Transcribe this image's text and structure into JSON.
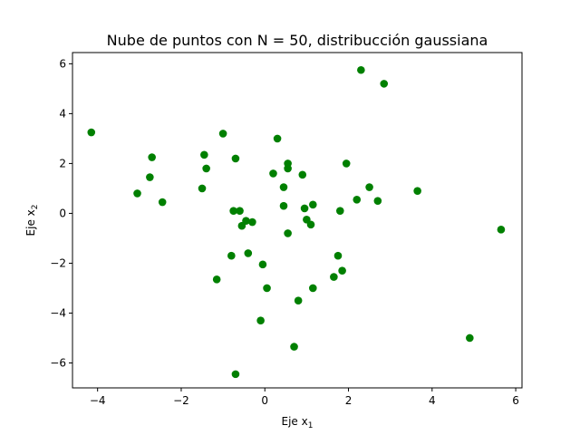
{
  "chart_data": {
    "type": "scatter",
    "title": "Nube de puntos con N = 50, distribucción gaussiana",
    "xlabel": {
      "text": "Eje x",
      "sub": "1"
    },
    "ylabel": {
      "text": "Eje x",
      "sub": "2"
    },
    "xlim": [
      -4.6,
      6.15
    ],
    "ylim": [
      -7.0,
      6.45
    ],
    "xticks": [
      -4,
      -2,
      0,
      2,
      4,
      6
    ],
    "yticks": [
      -6,
      -4,
      -2,
      0,
      2,
      4,
      6
    ],
    "grid": false,
    "marker_color": "#008000",
    "series": [
      {
        "points": [
          [
            -4.15,
            3.25
          ],
          [
            -3.05,
            0.8
          ],
          [
            -2.75,
            1.45
          ],
          [
            -2.7,
            2.25
          ],
          [
            -2.45,
            0.45
          ],
          [
            -1.45,
            2.35
          ],
          [
            -1.5,
            1.0
          ],
          [
            -1.4,
            1.8
          ],
          [
            -1.0,
            3.2
          ],
          [
            -0.7,
            2.2
          ],
          [
            -0.75,
            0.1
          ],
          [
            -0.6,
            0.1
          ],
          [
            -0.55,
            -0.5
          ],
          [
            -0.45,
            -0.3
          ],
          [
            -0.3,
            -0.35
          ],
          [
            -0.8,
            -1.7
          ],
          [
            -0.4,
            -1.6
          ],
          [
            -1.15,
            -2.65
          ],
          [
            -0.05,
            -2.05
          ],
          [
            0.05,
            -3.0
          ],
          [
            -0.1,
            -4.3
          ],
          [
            -0.7,
            -6.45
          ],
          [
            0.2,
            1.6
          ],
          [
            0.3,
            3.0
          ],
          [
            0.45,
            1.05
          ],
          [
            0.55,
            2.0
          ],
          [
            0.55,
            1.8
          ],
          [
            0.45,
            0.3
          ],
          [
            0.55,
            -0.8
          ],
          [
            0.7,
            -5.35
          ],
          [
            0.8,
            -3.5
          ],
          [
            0.9,
            1.55
          ],
          [
            0.95,
            0.2
          ],
          [
            1.0,
            -0.25
          ],
          [
            1.1,
            -0.45
          ],
          [
            1.15,
            0.35
          ],
          [
            1.15,
            -3.0
          ],
          [
            1.65,
            -2.55
          ],
          [
            1.75,
            -1.7
          ],
          [
            1.8,
            0.1
          ],
          [
            1.85,
            -2.3
          ],
          [
            1.95,
            2.0
          ],
          [
            2.2,
            0.55
          ],
          [
            2.3,
            5.75
          ],
          [
            2.5,
            1.05
          ],
          [
            2.7,
            0.5
          ],
          [
            2.85,
            5.2
          ],
          [
            3.65,
            0.9
          ],
          [
            4.9,
            -5.0
          ],
          [
            5.65,
            -0.65
          ]
        ]
      }
    ]
  }
}
